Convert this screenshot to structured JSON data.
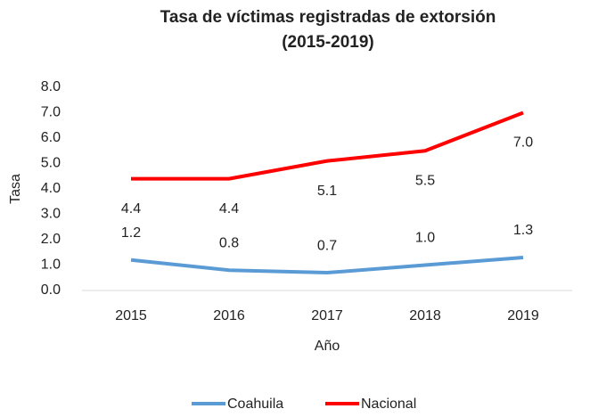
{
  "chart_data": {
    "type": "line",
    "title": [
      "Tasa de víctimas registradas de extorsión",
      "(2015-2019)"
    ],
    "x_label": "Año",
    "y_label": "Tasa",
    "categories": [
      "2015",
      "2016",
      "2017",
      "2018",
      "2019"
    ],
    "series": [
      {
        "name": "Coahuila",
        "color": "#5b9bd5",
        "values": [
          1.2,
          0.8,
          0.7,
          1.0,
          1.3
        ],
        "value_labels": [
          "1.2",
          "0.8",
          "0.7",
          "1.0",
          "1.3"
        ],
        "label_position": "above"
      },
      {
        "name": "Nacional",
        "color": "#ff0000",
        "values": [
          4.4,
          4.4,
          5.1,
          5.5,
          7.0
        ],
        "value_labels": [
          "4.4",
          "4.4",
          "5.1",
          "5.5",
          "7.0"
        ],
        "label_position": "below"
      }
    ],
    "ylim": [
      0,
      8
    ],
    "yticks": [
      {
        "value": 0,
        "label": "0.0"
      },
      {
        "value": 1,
        "label": "1.0"
      },
      {
        "value": 2,
        "label": "2.0"
      },
      {
        "value": 3,
        "label": "3.0"
      },
      {
        "value": 4,
        "label": "4.0"
      },
      {
        "value": 5,
        "label": "5.0"
      },
      {
        "value": 6,
        "label": "6.0"
      },
      {
        "value": 7,
        "label": "7.0"
      },
      {
        "value": 8,
        "label": "8.0"
      }
    ],
    "grid": false,
    "legend": "bottom"
  }
}
